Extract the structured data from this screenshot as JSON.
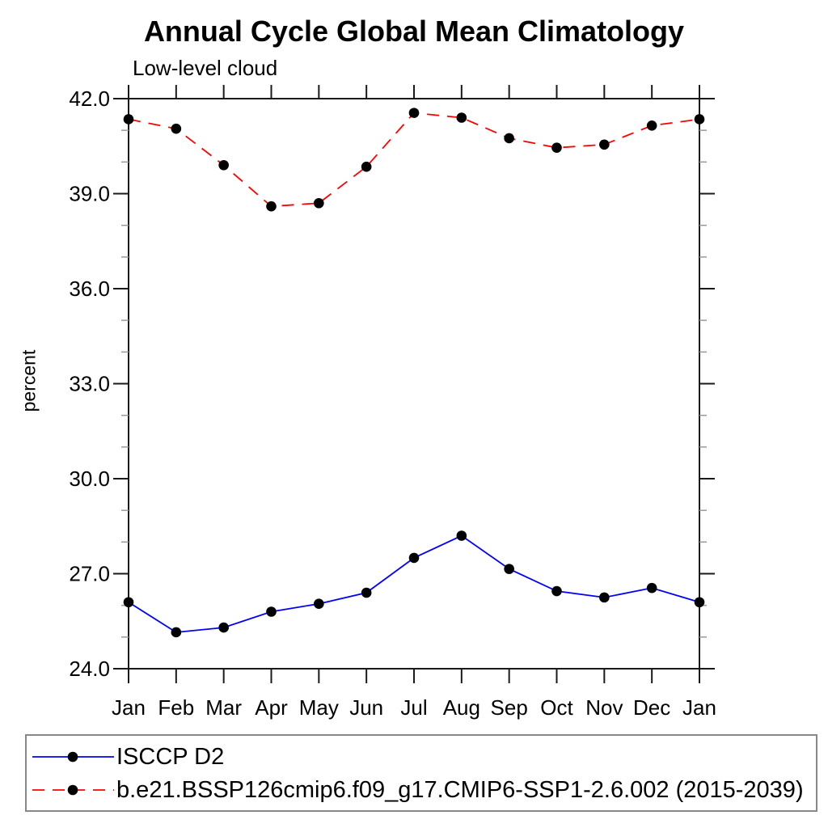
{
  "chart_data": {
    "type": "line",
    "title": "Annual Cycle Global Mean Climatology",
    "subtitle": "Low-level cloud",
    "ylabel": "percent",
    "xlabel": "",
    "categories": [
      "Jan",
      "Feb",
      "Mar",
      "Apr",
      "May",
      "Jun",
      "Jul",
      "Aug",
      "Sep",
      "Oct",
      "Nov",
      "Dec",
      "Jan"
    ],
    "series": [
      {
        "name": "ISCCP D2",
        "color": "#0000ff",
        "line_style": "solid",
        "marker": "filled-circle",
        "marker_color": "#000000",
        "values": [
          26.1,
          25.15,
          25.3,
          25.8,
          26.05,
          26.4,
          27.5,
          28.2,
          27.15,
          26.45,
          26.25,
          26.55,
          26.1
        ]
      },
      {
        "name": "b.e21.BSSP126cmip6.f09_g17.CMIP6-SSP1-2.6.002 (2015-2039)",
        "color": "#ff0000",
        "line_style": "dashed",
        "marker": "filled-circle",
        "marker_color": "#000000",
        "values": [
          41.35,
          41.05,
          39.9,
          38.6,
          38.7,
          39.85,
          41.55,
          41.4,
          40.75,
          40.45,
          40.55,
          41.15,
          41.35
        ]
      }
    ],
    "ylim": [
      24.0,
      42.0
    ],
    "ytick_major_interval": 3.0,
    "ytick_minor_interval": 1.0,
    "ytick_labels": [
      "24.0",
      "27.0",
      "30.0",
      "33.0",
      "36.0",
      "39.0",
      "42.0"
    ],
    "grid": false,
    "legend_position": "bottom",
    "legend_border": true
  }
}
